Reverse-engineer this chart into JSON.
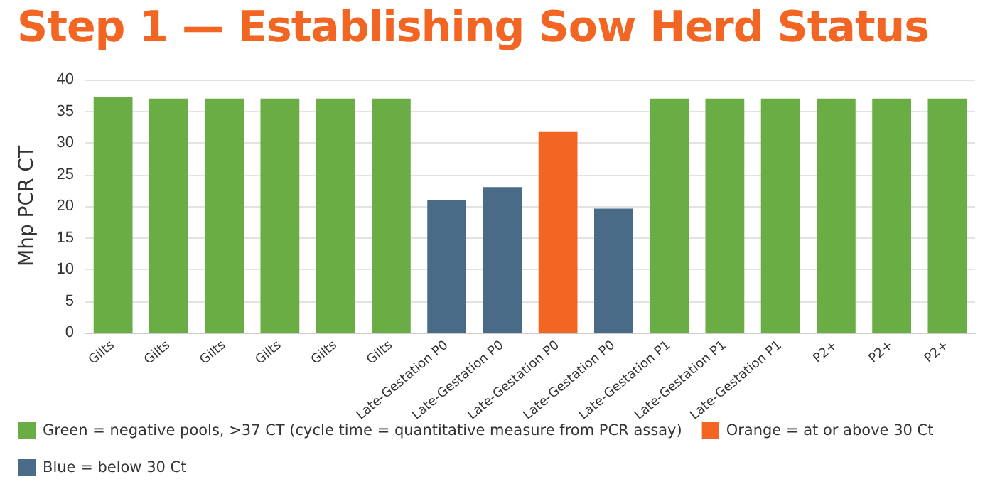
{
  "chart_data": {
    "type": "bar",
    "title": "Step 1 — Establishing Sow Herd Status",
    "ylabel": "Mhp PCR CT",
    "categories": [
      "Gilts",
      "Gilts",
      "Gilts",
      "Gilts",
      "Gilts",
      "Gilts",
      "Late-Gestation P0",
      "Late-Gestation P0",
      "Late-Gestation P0",
      "Late-Gestation P0",
      "Late-Gestation P1",
      "Late-Gestation P1",
      "Late-Gestation P1",
      "P2+",
      "P2+",
      "P2+"
    ],
    "series": [
      {
        "name": "Green = negative pools, >37 CT (cycle time = quantitative measure from PCR assay)",
        "color": "#6aad45",
        "values": [
          37.2,
          37,
          37,
          37,
          37,
          37,
          null,
          null,
          null,
          null,
          37,
          37,
          37,
          37,
          37,
          37
        ]
      },
      {
        "name": "Orange = at or above 30 Ct",
        "color": "#f26522",
        "values": [
          null,
          null,
          null,
          null,
          null,
          null,
          null,
          null,
          31.7,
          null,
          null,
          null,
          null,
          null,
          null,
          null
        ]
      },
      {
        "name": "Blue = below 30 Ct",
        "color": "#4a6b87",
        "values": [
          null,
          null,
          null,
          null,
          null,
          null,
          21,
          23,
          null,
          19.6,
          null,
          null,
          null,
          null,
          null,
          null
        ]
      }
    ],
    "ylim": [
      0,
      40
    ],
    "yticks": [
      0,
      5,
      10,
      15,
      20,
      25,
      30,
      35,
      40
    ],
    "grid": "y",
    "legend": "bottom left"
  }
}
